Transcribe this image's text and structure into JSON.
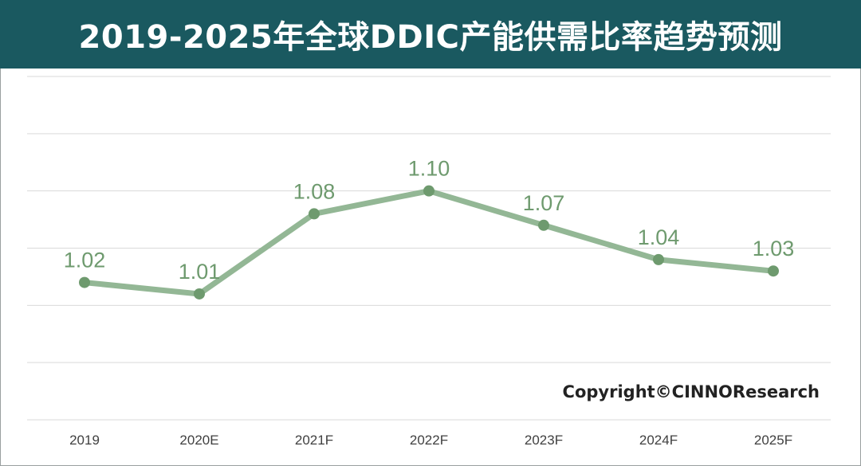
{
  "header": {
    "title": "2019-2025年全球DDIC产能供需比率趋势预测"
  },
  "watermark": {
    "text": "Copyright©CINNOResearch"
  },
  "colors": {
    "title_bg": "#1a5960",
    "line": "#93b795",
    "marker": "#6e9a6e",
    "label": "#6e9a6e",
    "grid": "#d9d9d9"
  },
  "chart_data": {
    "type": "line",
    "title": "2019-2025年全球DDIC产能供需比率趋势预测",
    "categories": [
      "2019",
      "2020E",
      "2021F",
      "2022F",
      "2023F",
      "2024F",
      "2025F"
    ],
    "series": [
      {
        "values": [
          1.02,
          1.01,
          1.08,
          1.1,
          1.07,
          1.04,
          1.03
        ]
      }
    ],
    "data_labels": [
      "1.02",
      "1.01",
      "1.08",
      "1.10",
      "1.07",
      "1.04",
      "1.03"
    ],
    "ylim": [
      0.9,
      1.2
    ],
    "y_gridlines": [
      0.9,
      0.95,
      1.0,
      1.05,
      1.1,
      1.15,
      1.2
    ],
    "grid": true,
    "y_tick_labels_visible": false,
    "legend": "none"
  }
}
